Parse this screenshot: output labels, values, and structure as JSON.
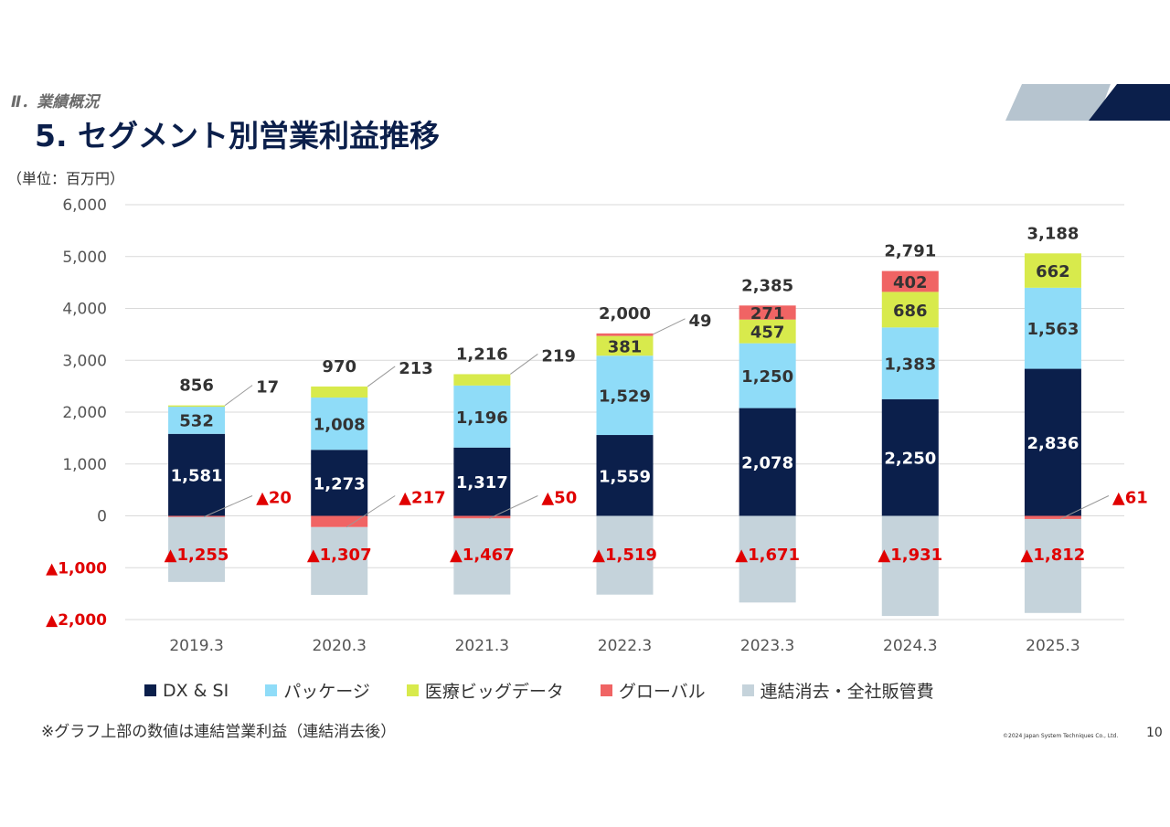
{
  "header": {
    "section": "Ⅱ．業績概況",
    "title": "5. セグメント別営業利益推移",
    "unit": "（単位：百万円）"
  },
  "footer": {
    "note": "※グラフ上部の数値は連結営業利益（連結消去後）",
    "copyright": "©2024 Japan System Techniques Co., Ltd.",
    "page_number": "10"
  },
  "colors": {
    "dx_si": "#0b1f4b",
    "package": "#8fdcf8",
    "medical": "#d8ea4c",
    "global": "#f06464",
    "elimination": "#c5d3db",
    "negative_label": "#e00000",
    "deco_light": "#b6c4cf",
    "deco_dark": "#0b1f4b"
  },
  "chart_data": {
    "type": "bar",
    "stacked": true,
    "categories": [
      "2019.3",
      "2020.3",
      "2021.3",
      "2022.3",
      "2023.3",
      "2024.3",
      "2025.3"
    ],
    "series": [
      {
        "name": "DX & SI",
        "values": [
          1581,
          1273,
          1317,
          1559,
          2078,
          2250,
          2836
        ],
        "labels": [
          "1,581",
          "1,273",
          "1,317",
          "1,559",
          "2,078",
          "2,250",
          "2,836"
        ]
      },
      {
        "name": "パッケージ",
        "values": [
          532,
          1008,
          1196,
          1529,
          1250,
          1383,
          1563
        ],
        "labels": [
          "532",
          "1,008",
          "1,196",
          "1,529",
          "1,250",
          "1,383",
          "1,563"
        ]
      },
      {
        "name": "医療ビッグデータ",
        "values": [
          17,
          213,
          219,
          381,
          457,
          686,
          662
        ],
        "labels": [
          "17",
          "213",
          "219",
          "381",
          "457",
          "686",
          "662"
        ]
      },
      {
        "name": "グローバル",
        "values": [
          -20,
          -217,
          -50,
          49,
          271,
          402,
          -61
        ],
        "labels": [
          "▲20",
          "▲217",
          "▲50",
          "49",
          "271",
          "402",
          "▲61"
        ]
      },
      {
        "name": "連結消去・全社販管費",
        "values": [
          -1255,
          -1307,
          -1467,
          -1519,
          -1671,
          -1931,
          -1812
        ],
        "labels": [
          "▲1,255",
          "▲1,307",
          "▲1,467",
          "▲1,519",
          "▲1,671",
          "▲1,931",
          "▲1,812"
        ]
      }
    ],
    "totals": [
      856,
      970,
      1216,
      2000,
      2385,
      2791,
      3188
    ],
    "total_labels": [
      "856",
      "970",
      "1,216",
      "2,000",
      "2,385",
      "2,791",
      "3,188"
    ],
    "ylim": [
      -2000,
      6000
    ],
    "yticks": [
      -2000,
      -1000,
      0,
      1000,
      2000,
      3000,
      4000,
      5000,
      6000
    ],
    "ytick_labels": [
      "▲2,000",
      "▲1,000",
      "0",
      "1,000",
      "2,000",
      "3,000",
      "4,000",
      "5,000",
      "6,000"
    ],
    "grid": true,
    "legend_position": "bottom",
    "title": "5. セグメント別営業利益推移",
    "ylabel": "（単位：百万円）",
    "xlabel": ""
  }
}
